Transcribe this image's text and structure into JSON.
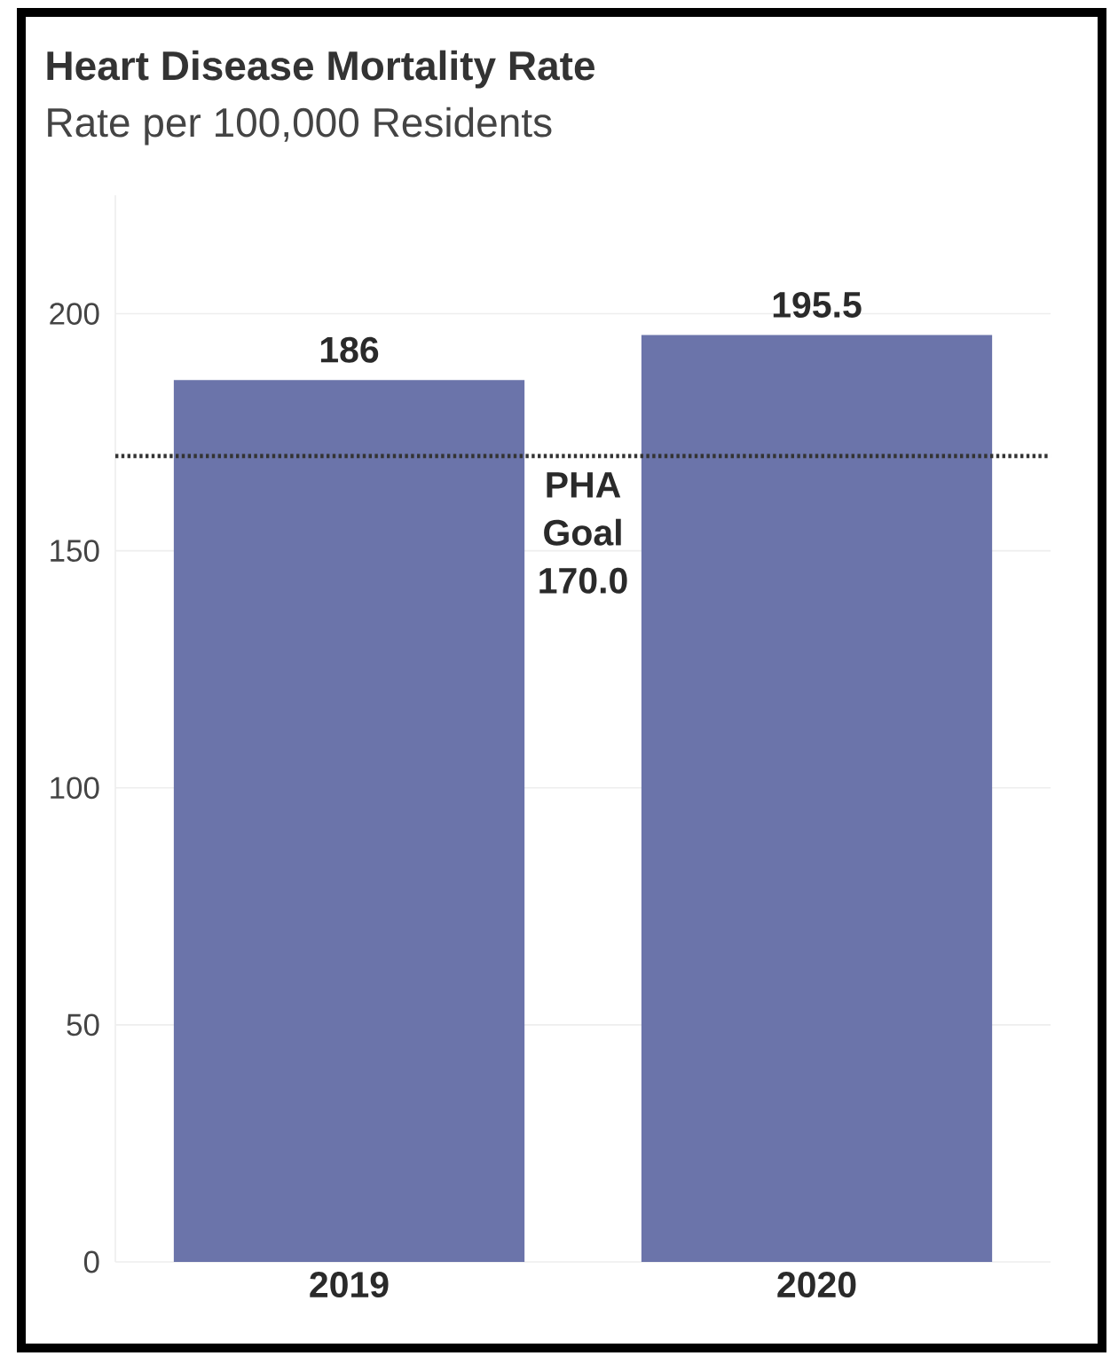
{
  "chart_data": {
    "type": "bar",
    "title": "Heart Disease Mortality Rate",
    "subtitle": "Rate per 100,000 Residents",
    "categories": [
      "2019",
      "2020"
    ],
    "values": [
      186,
      195.5
    ],
    "color": "#6b74aa",
    "ylim": [
      0,
      225
    ],
    "yticks": [
      0,
      50,
      100,
      150,
      200
    ],
    "grid": "y",
    "data_labels": true,
    "ref_lines": [
      {
        "axis": "y",
        "value": 170,
        "label": "PHA Goal 170.0",
        "color": "#333333",
        "line_style": "dotted"
      }
    ]
  }
}
